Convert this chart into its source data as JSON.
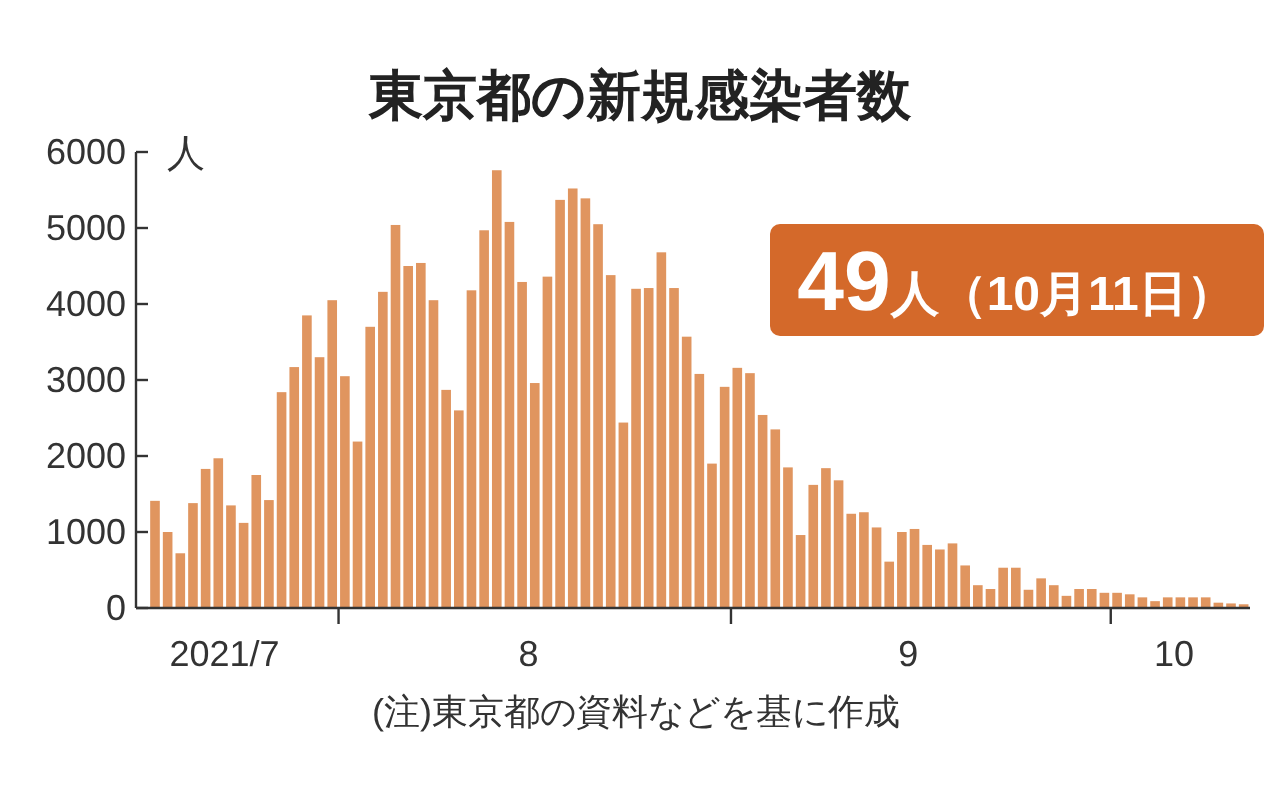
{
  "chart_data": {
    "type": "bar",
    "title": "東京都の新規感染者数",
    "ylabel": "人",
    "annotations": [
      "49人（10月11日）",
      "(注)東京都の資料などを基に作成"
    ],
    "x": [
      "2021-07-17",
      "2021-07-18",
      "2021-07-19",
      "2021-07-20",
      "2021-07-21",
      "2021-07-22",
      "2021-07-23",
      "2021-07-24",
      "2021-07-25",
      "2021-07-26",
      "2021-07-27",
      "2021-07-28",
      "2021-07-29",
      "2021-07-30",
      "2021-07-31",
      "2021-08-01",
      "2021-08-02",
      "2021-08-03",
      "2021-08-04",
      "2021-08-05",
      "2021-08-06",
      "2021-08-07",
      "2021-08-08",
      "2021-08-09",
      "2021-08-10",
      "2021-08-11",
      "2021-08-12",
      "2021-08-13",
      "2021-08-14",
      "2021-08-15",
      "2021-08-16",
      "2021-08-17",
      "2021-08-18",
      "2021-08-19",
      "2021-08-20",
      "2021-08-21",
      "2021-08-22",
      "2021-08-23",
      "2021-08-24",
      "2021-08-25",
      "2021-08-26",
      "2021-08-27",
      "2021-08-28",
      "2021-08-29",
      "2021-08-30",
      "2021-08-31",
      "2021-09-01",
      "2021-09-02",
      "2021-09-03",
      "2021-09-04",
      "2021-09-05",
      "2021-09-06",
      "2021-09-07",
      "2021-09-08",
      "2021-09-09",
      "2021-09-10",
      "2021-09-11",
      "2021-09-12",
      "2021-09-13",
      "2021-09-14",
      "2021-09-15",
      "2021-09-16",
      "2021-09-17",
      "2021-09-18",
      "2021-09-19",
      "2021-09-20",
      "2021-09-21",
      "2021-09-22",
      "2021-09-23",
      "2021-09-24",
      "2021-09-25",
      "2021-09-26",
      "2021-09-27",
      "2021-09-28",
      "2021-09-29",
      "2021-09-30",
      "2021-10-01",
      "2021-10-02",
      "2021-10-03",
      "2021-10-04",
      "2021-10-05",
      "2021-10-06",
      "2021-10-07",
      "2021-10-08",
      "2021-10-09",
      "2021-10-10",
      "2021-10-11"
    ],
    "values": [
      1410,
      1000,
      720,
      1380,
      1830,
      1970,
      1350,
      1120,
      1750,
      1420,
      2840,
      3170,
      3850,
      3300,
      4050,
      3050,
      2190,
      3700,
      4160,
      5040,
      4500,
      4540,
      4050,
      2870,
      2600,
      4180,
      4970,
      5760,
      5080,
      4290,
      2960,
      4360,
      5370,
      5520,
      5390,
      5050,
      4380,
      2440,
      4200,
      4210,
      4680,
      4210,
      3570,
      3080,
      1900,
      2910,
      3160,
      3090,
      2540,
      2350,
      1850,
      960,
      1620,
      1840,
      1680,
      1240,
      1260,
      1060,
      610,
      1000,
      1040,
      830,
      770,
      850,
      560,
      300,
      250,
      530,
      530,
      240,
      390,
      300,
      160,
      250,
      250,
      200,
      200,
      180,
      140,
      90,
      140,
      140,
      140,
      140,
      70,
      60,
      49
    ],
    "color": "#e0955f",
    "xlim": [
      "2021-07-16",
      "2021-10-12"
    ],
    "xticks": [
      {
        "value": "2021-07-23",
        "label": "2021/7"
      },
      {
        "value": "2021-08-01",
        "label": null
      },
      {
        "value": "2021-08-16",
        "label": "8"
      },
      {
        "value": "2021-09-01",
        "label": null
      },
      {
        "value": "2021-09-15",
        "label": "9"
      },
      {
        "value": "2021-10-01",
        "label": null
      },
      {
        "value": "2021-10-06",
        "label": "10"
      }
    ],
    "ylim": [
      0,
      6000
    ],
    "yticks": [
      0,
      1000,
      2000,
      3000,
      4000,
      5000,
      6000
    ],
    "grid": false
  }
}
